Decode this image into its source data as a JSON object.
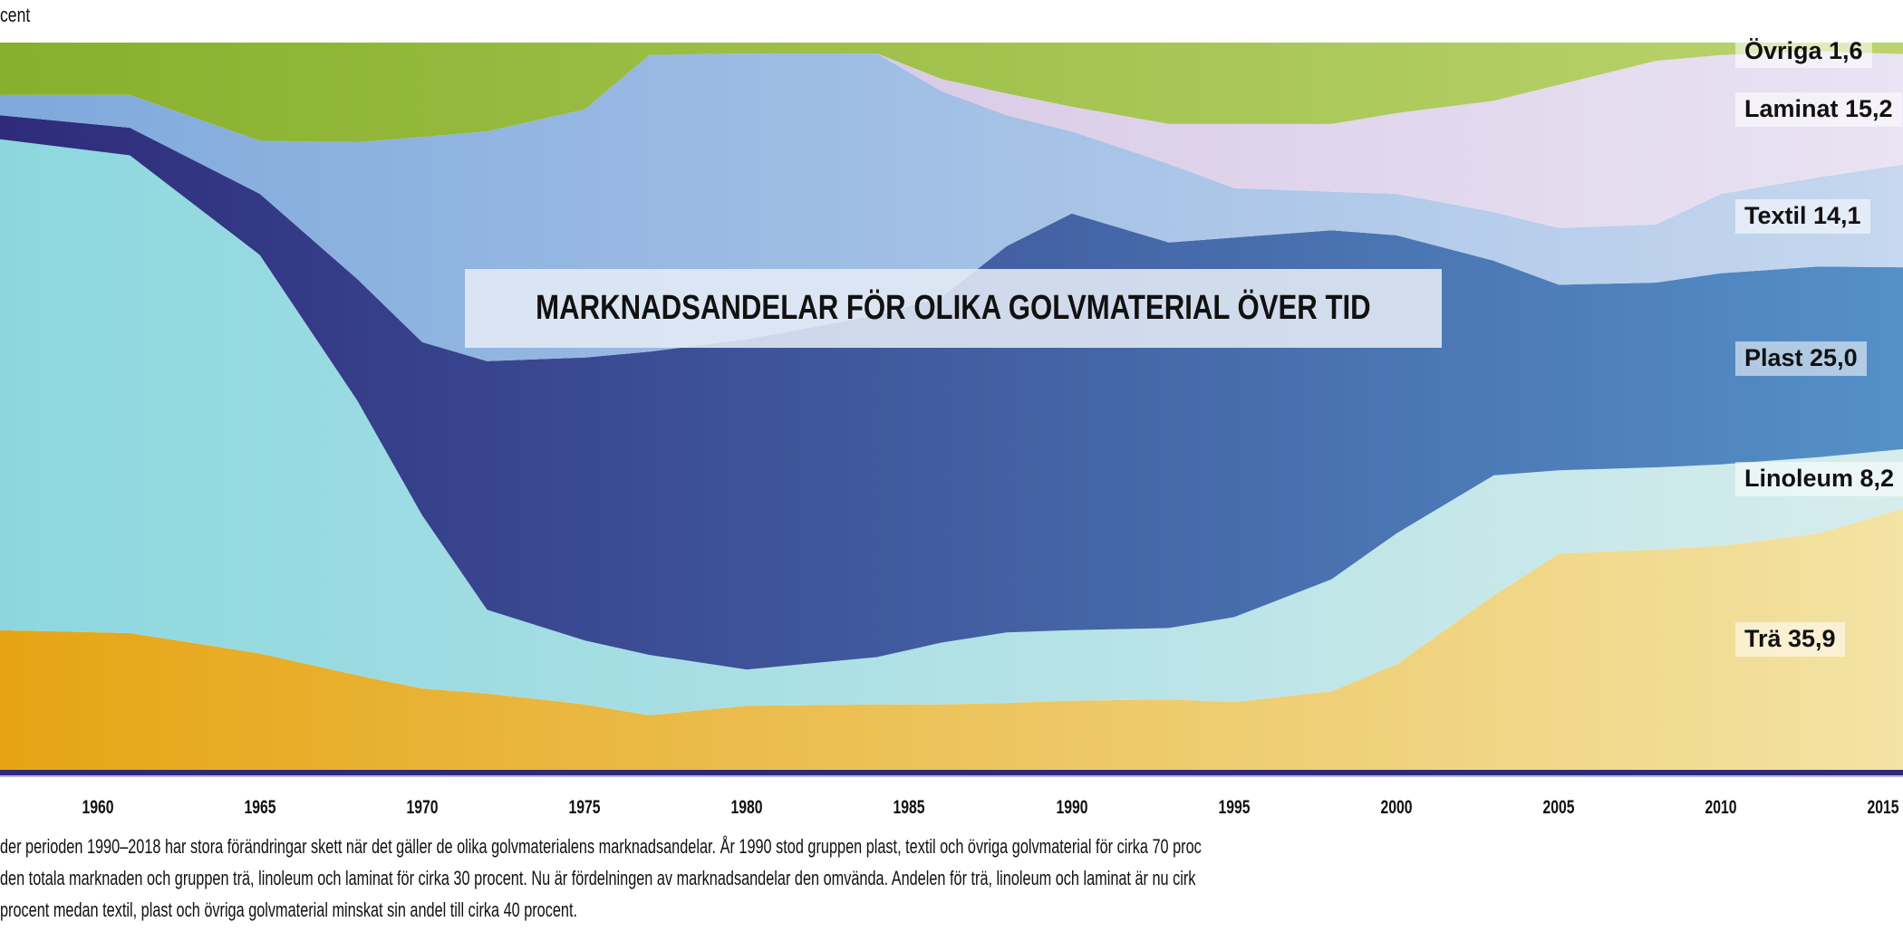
{
  "chart_data": {
    "type": "area",
    "stacked": true,
    "title": "MARKNADSANDELAR FÖR OLIKA GOLVMATERIAL ÖVER TID",
    "ylabel": "cent",
    "xlabel": "",
    "xlim": [
      1957,
      2015.6
    ],
    "ylim": [
      0,
      100
    ],
    "x_ticks": [
      "1960",
      "1965",
      "1970",
      "1975",
      "1980",
      "1985",
      "1990",
      "1995",
      "2000",
      "2005",
      "2010",
      "2015"
    ],
    "x": [
      1957,
      1961,
      1965,
      1968,
      1970,
      1972,
      1975,
      1977,
      1980,
      1984,
      1986,
      1988,
      1990,
      1993,
      1995,
      1998,
      2000,
      2003,
      2005,
      2008,
      2010,
      2013,
      2015.6
    ],
    "series": [
      {
        "name": "Trä",
        "label": "Trä 35,9",
        "colors": [
          "#e6a414",
          "#f3e3a4"
        ],
        "values": [
          19.2,
          18.8,
          16,
          13,
          11.2,
          10.5,
          9,
          7.5,
          8.8,
          9,
          9,
          9.2,
          9.5,
          9.7,
          9.3,
          10.8,
          14.5,
          24,
          29.7,
          30.3,
          30.8,
          32.5,
          35.9
        ]
      },
      {
        "name": "Linoleum",
        "label": "Linoleum 8,2",
        "colors": [
          "#8cd7df",
          "#d6ecec"
        ],
        "values": [
          67.5,
          65.7,
          54.8,
          37.8,
          23.8,
          11.5,
          8.8,
          8.3,
          5,
          6.5,
          8.5,
          9.7,
          9.7,
          9.8,
          11.7,
          15.4,
          18,
          16.5,
          11.5,
          11.3,
          11.2,
          10.5,
          8.2
        ]
      },
      {
        "name": "Plast",
        "label": "Plast 25,0",
        "colors": [
          "#2e2b7a",
          "#5590c8"
        ],
        "values": [
          3.3,
          3.8,
          8.4,
          16.7,
          23.8,
          34.2,
          38.9,
          41.7,
          45.4,
          47,
          47.5,
          53.1,
          57.3,
          53,
          52.2,
          48,
          41,
          29.5,
          25.5,
          25.4,
          26.3,
          26.2,
          25.0
        ]
      },
      {
        "name": "Textil",
        "label": "Textil 14,1",
        "colors": [
          "#7fa9dc",
          "#c6d7ef"
        ],
        "values": [
          2.8,
          4.5,
          7.3,
          18.8,
          28.2,
          31.6,
          34.1,
          40.8,
          39.3,
          36,
          28.3,
          18,
          11.3,
          10.8,
          6.8,
          5.3,
          5.7,
          6.7,
          7.8,
          8,
          10.9,
          12.3,
          14.1
        ]
      },
      {
        "name": "Laminat",
        "label": "Laminat 15,2",
        "colors": [
          "#cdb6dc",
          "#e9e3f3"
        ],
        "values": [
          0,
          0,
          0,
          0,
          0,
          0,
          0,
          0,
          0,
          0,
          1.7,
          3,
          3.4,
          5.5,
          8.8,
          9.3,
          11.1,
          15.3,
          19.7,
          22.5,
          19.1,
          17.3,
          15.2
        ]
      },
      {
        "name": "Övriga",
        "label": "Övriga 1,6",
        "colors": [
          "#87b02c",
          "#bcd46f"
        ],
        "values": [
          7.2,
          7.2,
          13.5,
          13.7,
          13,
          12.2,
          9.2,
          1.7,
          1.5,
          1.5,
          5,
          7,
          8.8,
          11.2,
          11.2,
          11.2,
          9.7,
          8,
          5.8,
          2.5,
          1.7,
          1.2,
          1.6
        ]
      }
    ],
    "axis_color": "#2e2a7a",
    "grid": false,
    "legend": "right (inline labels)"
  },
  "caption": [
    "der perioden 1990–2018 har stora förändringar skett när det gäller de olika golvmaterialens marknadsandelar. År 1990 stod gruppen plast, textil och övriga golvmaterial för cirka 70 proc",
    "den totala marknaden och gruppen trä, linoleum och laminat för cirka 30 procent. Nu är fördelningen av marknadsandelar den omvända. Andelen för trä, linoleum och laminat är nu cirk",
    "procent medan textil, plast och övriga golvmaterial minskat sin andel till cirka 40 procent."
  ]
}
